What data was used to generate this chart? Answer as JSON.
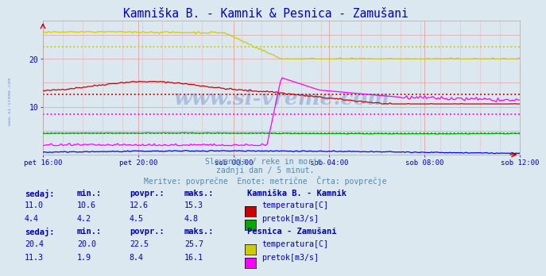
{
  "title": "Kamniška B. - Kamnik & Pesnica - Zamušani",
  "title_color": "#0000cc",
  "bg_color": "#dce8f0",
  "plot_bg_color": "#dce8f0",
  "xlabel_ticks": [
    "pet 16:00",
    "pet 20:00",
    "sob 00:00",
    "sob 04:00",
    "sob 08:00",
    "sob 12:00"
  ],
  "ylim": [
    0,
    28
  ],
  "yticks": [
    10,
    20
  ],
  "grid_color_pink": "#e8a0a0",
  "grid_color_red": "#d06060",
  "n_points": 288,
  "kamnik_temp_avg": 12.6,
  "kamnik_pretok_avg": 4.5,
  "pesnica_temp_avg": 22.5,
  "pesnica_pretok_avg": 8.4,
  "color_kamnik_temp": "#cc0000",
  "color_kamnik_pretok": "#00aa00",
  "color_pesnica_temp": "#cccc00",
  "color_pesnica_pretok": "#ff00ff",
  "color_height": "#0000ff",
  "watermark_color": "#3355aa",
  "sub_text1": "Slovenija / reke in morje.",
  "sub_text2": "zadnji dan / 5 minut.",
  "sub_text3": "Meritve: povprečne  Enote: metrične  Črta: povprečje",
  "legend_title1": "Kamniška B. - Kamnik",
  "legend_title2": "Pesnica - Zamušani",
  "legend_label1a": "temperatura[C]",
  "legend_label1b": "pretok[m3/s]",
  "legend_label2a": "temperatura[C]",
  "legend_label2b": "pretok[m3/s]",
  "table_headers": [
    "sedaj:",
    "min.:",
    "povpr.:",
    "maks.:"
  ],
  "kamnik_row1": [
    11.0,
    10.6,
    12.6,
    15.3
  ],
  "kamnik_row2": [
    4.4,
    4.2,
    4.5,
    4.8
  ],
  "pesnica_row1": [
    20.4,
    20.0,
    22.5,
    25.7
  ],
  "pesnica_row2": [
    11.3,
    1.9,
    8.4,
    16.1
  ]
}
